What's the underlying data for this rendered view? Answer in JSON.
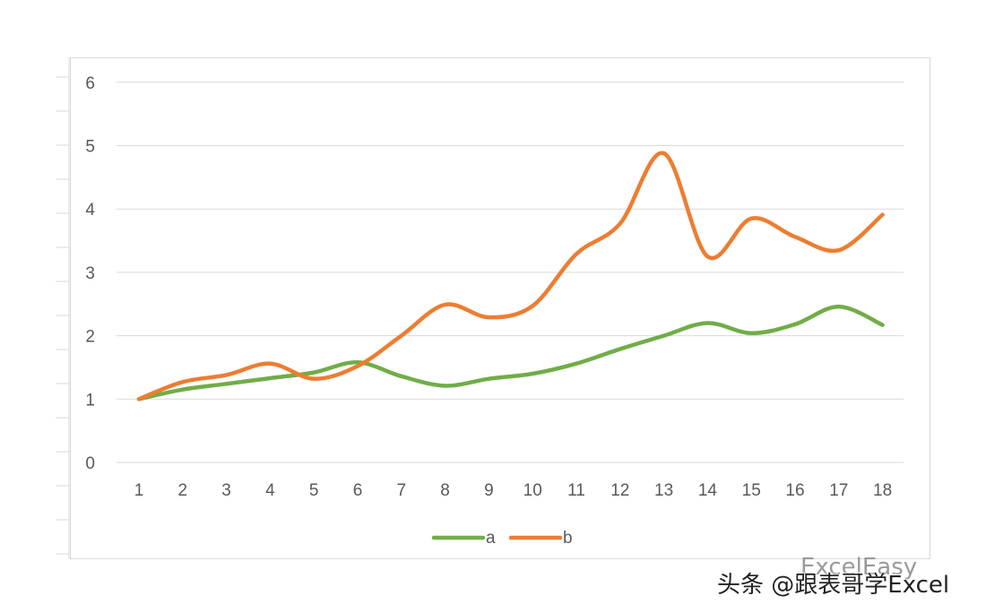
{
  "chart_data": {
    "type": "line",
    "smooth": true,
    "categories": [
      "1",
      "2",
      "3",
      "4",
      "5",
      "6",
      "7",
      "8",
      "9",
      "10",
      "11",
      "12",
      "13",
      "14",
      "15",
      "16",
      "17",
      "18"
    ],
    "series": [
      {
        "name": "a",
        "color": "#70ad47",
        "values": [
          1.0,
          1.15,
          1.24,
          1.33,
          1.42,
          1.58,
          1.36,
          1.21,
          1.32,
          1.4,
          1.56,
          1.79,
          2.0,
          2.2,
          2.04,
          2.18,
          2.46,
          2.17
        ]
      },
      {
        "name": "b",
        "color": "#ed7d31",
        "values": [
          1.0,
          1.27,
          1.38,
          1.56,
          1.32,
          1.52,
          2.0,
          2.49,
          2.29,
          2.47,
          3.29,
          3.77,
          4.88,
          3.25,
          3.85,
          3.56,
          3.35,
          3.91
        ]
      }
    ],
    "yticks": [
      "0",
      "1",
      "2",
      "3",
      "4",
      "5",
      "6"
    ],
    "ylim": [
      0,
      6
    ],
    "grid": true,
    "legend": "bottom",
    "gridline_color": "#d9d9d9"
  },
  "watermark": {
    "text": "头条 @跟表哥学Excel",
    "faint_text": "ExcelEasy"
  }
}
